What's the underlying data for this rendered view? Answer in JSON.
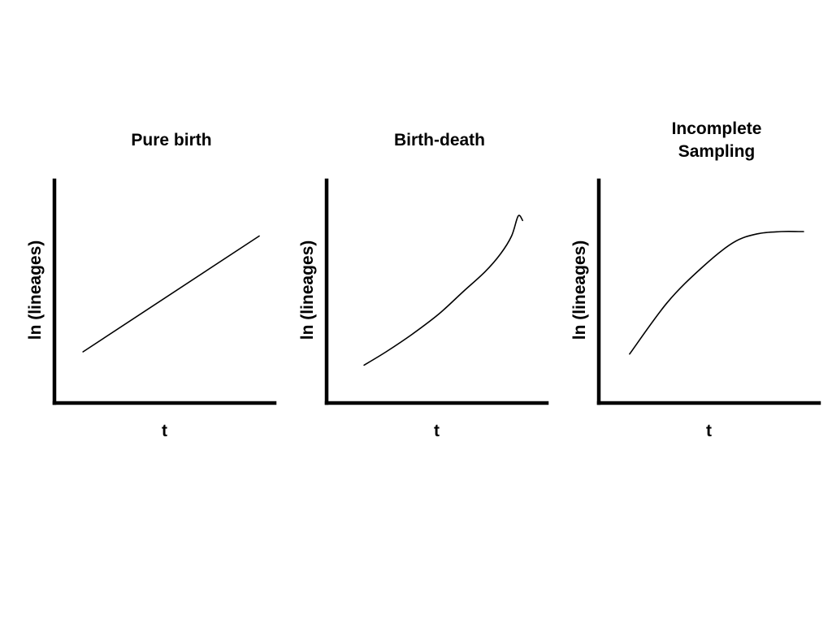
{
  "chart_data": [
    {
      "type": "line",
      "title": "Pure birth",
      "xlabel": "t",
      "ylabel": "ln (lineages)",
      "xlim": [
        0,
        10
      ],
      "ylim": [
        0,
        10
      ],
      "grid": false,
      "series": [
        {
          "x": [
            1.3,
            9.3
          ],
          "y": [
            2.3,
            7.5
          ]
        }
      ]
    },
    {
      "type": "line",
      "title": "Birth-death",
      "xlabel": "t",
      "ylabel": "ln (lineages)",
      "xlim": [
        0,
        10
      ],
      "ylim": [
        0,
        10
      ],
      "grid": false,
      "series": [
        {
          "x": [
            1.7,
            2.7,
            3.9,
            5.1,
            6.2,
            7.2,
            7.9,
            8.4,
            8.7,
            8.9
          ],
          "y": [
            1.7,
            2.3,
            3.1,
            4.0,
            5.0,
            5.9,
            6.7,
            7.5,
            8.4,
            8.2
          ]
        }
      ]
    },
    {
      "type": "line",
      "title": "Incomplete\nSampling",
      "xlabel": "t",
      "ylabel": "ln (lineages)",
      "xlim": [
        0,
        10
      ],
      "ylim": [
        0,
        10
      ],
      "grid": false,
      "series": [
        {
          "x": [
            1.4,
            3.1,
            4.7,
            6.1,
            7.2,
            8.3,
            9.1,
            9.3
          ],
          "y": [
            2.2,
            4.5,
            6.1,
            7.2,
            7.6,
            7.7,
            7.7,
            7.7
          ]
        }
      ]
    }
  ]
}
